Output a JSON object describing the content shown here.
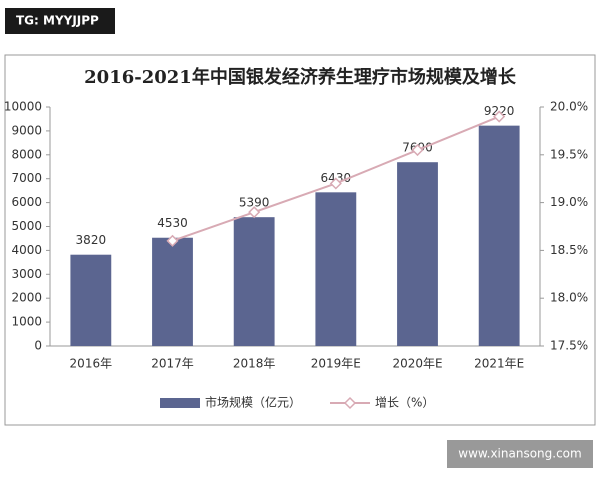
{
  "watermark_top": "TG: MYYJJPP",
  "watermark_bottom": "www.xinansong.com",
  "chart_data": {
    "type": "bar_line",
    "title": "2016-2021年中国银发经济养生理疗市场规模及增长",
    "categories": [
      "2016年",
      "2017年",
      "2018年",
      "2019年E",
      "2020年E",
      "2021年E"
    ],
    "series": [
      {
        "name": "市场规模（亿元）",
        "color": "#5b6590",
        "values": [
          3820,
          4530,
          5390,
          6430,
          7690,
          9220
        ]
      },
      {
        "name": "增长（%）",
        "color": "#d8aab4",
        "axis": "y2",
        "values": [
          null,
          18.6,
          18.9,
          19.2,
          19.55,
          19.9
        ]
      }
    ],
    "ylim": [
      0,
      10000
    ],
    "yticks": [
      0,
      1000,
      2000,
      3000,
      4000,
      5000,
      6000,
      7000,
      8000,
      9000,
      10000
    ],
    "y2lim": [
      17.5,
      20.0
    ],
    "y2ticks": [
      {
        "value": 17.5,
        "label": "17.5%"
      },
      {
        "value": 18,
        "label": "18.0%"
      },
      {
        "value": 18.5,
        "label": "18.5%"
      },
      {
        "value": 19,
        "label": "19.0%"
      },
      {
        "value": 19.5,
        "label": "19.5%"
      },
      {
        "value": 20,
        "label": "20.0%"
      }
    ],
    "legend": "bottom"
  }
}
